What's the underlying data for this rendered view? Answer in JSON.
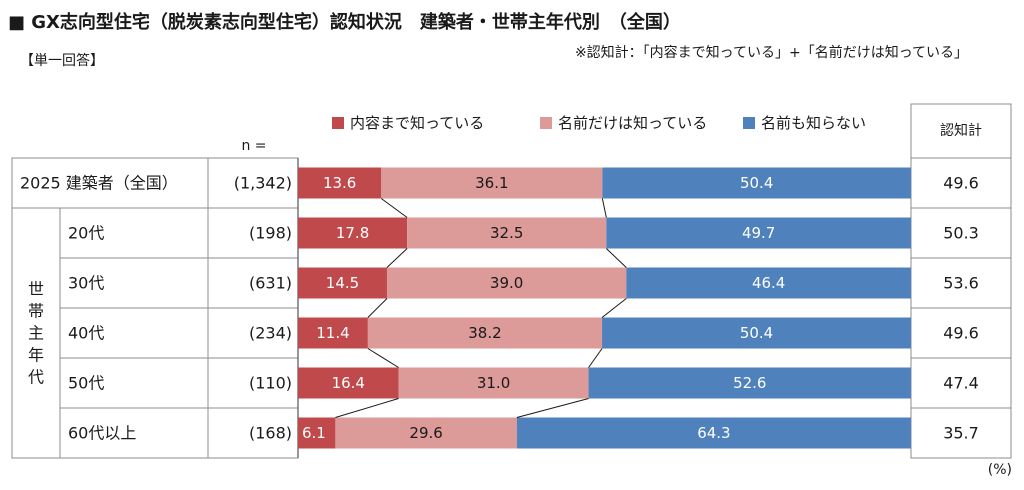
{
  "title": "■ GX志向型住宅（脱炭素志向型住宅）認知状況　建築者・世帯主年代別　（全国）",
  "subtitle": "【単一回答】",
  "note": "※認知計：「内容まで知っている」+「名前だけは知っている」",
  "n_header": "n =",
  "total_header": "認知計",
  "group_label": "世帯主年代",
  "unit": "(%)",
  "colors": {
    "know_content": "#c0494c",
    "know_name": "#dc9a99",
    "dont_know": "#4f81bd"
  },
  "chart_data": {
    "type": "bar",
    "orientation": "horizontal",
    "stacked": true,
    "percent_scale": [
      0,
      100
    ],
    "categories": [
      "2025 建築者（全国）",
      "20代",
      "30代",
      "40代",
      "50代",
      "60代以上"
    ],
    "n": [
      "(1,342)",
      "(198)",
      "(631)",
      "(234)",
      "(110)",
      "(168)"
    ],
    "series": [
      {
        "name": "内容まで知っている",
        "values": [
          13.6,
          17.8,
          14.5,
          11.4,
          16.4,
          6.1
        ]
      },
      {
        "name": "名前だけは知っている",
        "values": [
          36.1,
          32.5,
          39.0,
          38.2,
          31.0,
          29.6
        ]
      },
      {
        "name": "名前も知らない",
        "values": [
          50.4,
          49.7,
          46.4,
          50.4,
          52.6,
          64.3
        ]
      }
    ],
    "total": [
      49.6,
      50.3,
      53.6,
      49.6,
      47.4,
      35.7
    ],
    "legend_position": "top"
  }
}
